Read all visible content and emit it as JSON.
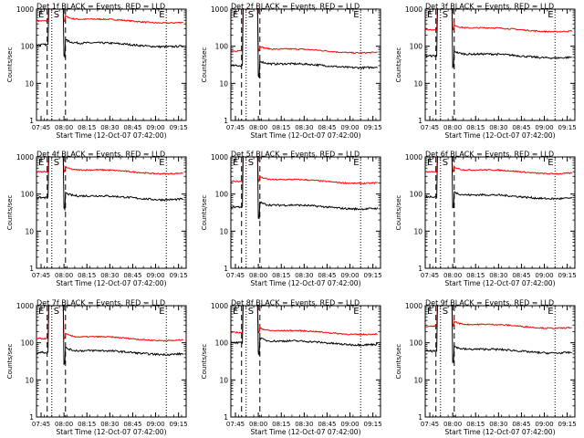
{
  "chart_data": {
    "type": "line",
    "yscale": "log",
    "ylim": [
      1,
      1000
    ],
    "y_ticks": [
      1,
      10,
      100,
      1000
    ],
    "y_tick_labels": [
      "1",
      "10",
      "100",
      "1000"
    ],
    "x_tick_labels": [
      "07:45",
      "08:00",
      "08:15",
      "08:30",
      "08:45",
      "09:00",
      "09:15"
    ],
    "ylabel": "Counts/sec",
    "xlabel": "Start Time (12-Oct-07 07:42:00)",
    "series_colors": {
      "events": "#000000",
      "lld": "#ff0000"
    },
    "marker_labels": {
      "S": "S",
      "E": "E"
    },
    "panels": [
      {
        "title": "Det 1f BLACK = Events, RED = LLD",
        "events_base": 110,
        "lld_base": 480
      },
      {
        "title": "Det 2f BLACK = Events, RED = LLD",
        "events_base": 30,
        "lld_base": 75
      },
      {
        "title": "Det 3f BLACK = Events, RED = LLD",
        "events_base": 55,
        "lld_base": 280
      },
      {
        "title": "Det 4f BLACK = Events, RED = LLD",
        "events_base": 80,
        "lld_base": 400
      },
      {
        "title": "Det 5f BLACK = Events, RED = LLD",
        "events_base": 45,
        "lld_base": 220
      },
      {
        "title": "Det 6f BLACK = Events, RED = LLD",
        "events_base": 85,
        "lld_base": 400
      },
      {
        "title": "Det 7f BLACK = Events, RED = LLD",
        "events_base": 55,
        "lld_base": 130
      },
      {
        "title": "Det 8f BLACK = Events, RED = LLD",
        "events_base": 100,
        "lld_base": 190
      },
      {
        "title": "Det 9f BLACK = Events, RED = LLD",
        "events_base": 60,
        "lld_base": 280
      }
    ]
  }
}
